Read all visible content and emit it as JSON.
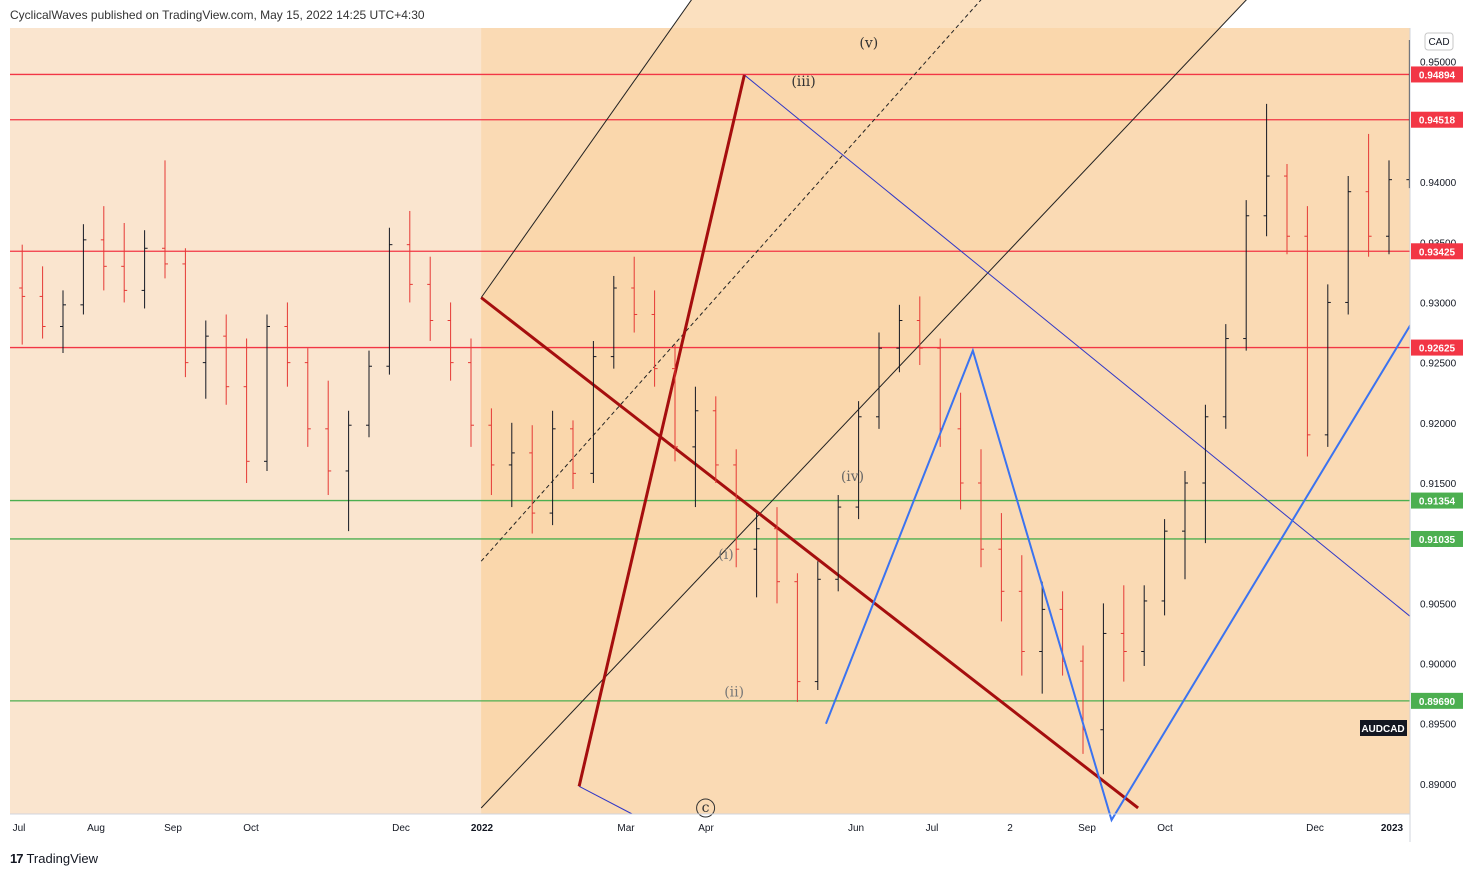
{
  "header": {
    "text": "CyclicalWaves published on TradingView.com, May 15, 2022 14:25 UTC+4:30"
  },
  "footer": {
    "logo_mark": "17",
    "logo_text": "TradingView"
  },
  "currency_label": "CAD",
  "symbol_tag": "AUDCAD",
  "colors": {
    "background": "#fae5cf",
    "channel_fill": "#f9d5aa",
    "red_line": "#f23645",
    "green_line": "#4caf50",
    "dark_red": "#a50e0e",
    "blue_thin": "#3037c7",
    "blue_projection": "#3b73f0",
    "candle_up": "#131722",
    "candle_down": "#e53935"
  },
  "chart_data": {
    "type": "bar",
    "symbol": "AUDCAD",
    "ylim": [
      0.8875,
      0.9528
    ],
    "x_tick_labels": [
      "Jul",
      "Aug",
      "Sep",
      "Oct",
      "Dec",
      "2022",
      "Mar",
      "Apr",
      "Jun",
      "Jul",
      "2",
      "Sep",
      "Oct",
      "Dec",
      "2023"
    ],
    "y_tick_labels": [
      "0.95000",
      "0.94500",
      "0.94000",
      "0.93500",
      "0.93000",
      "0.92500",
      "0.92000",
      "0.91500",
      "0.91000",
      "0.90500",
      "0.90000",
      "0.89500",
      "0.89000"
    ],
    "y_tick_values": [
      0.95,
      0.945,
      0.94,
      0.935,
      0.93,
      0.925,
      0.92,
      0.915,
      0.91,
      0.905,
      0.9,
      0.895,
      0.89
    ],
    "horizontal_levels": [
      {
        "value": 0.94894,
        "label": "0.94894",
        "color": "red"
      },
      {
        "value": 0.94518,
        "label": "0.94518",
        "color": "red"
      },
      {
        "value": 0.93425,
        "label": "0.93425",
        "color": "red"
      },
      {
        "value": 0.92625,
        "label": "0.92625",
        "color": "red"
      },
      {
        "value": 0.91354,
        "label": "0.91354",
        "color": "green"
      },
      {
        "value": 0.91035,
        "label": "0.91035",
        "color": "green"
      },
      {
        "value": 0.8969,
        "label": "0.89690",
        "color": "green"
      }
    ],
    "wave_labels": [
      {
        "text": "(v)",
        "week": 42.0,
        "price": 0.9515,
        "color": "#333333"
      },
      {
        "text": "(iii)",
        "week": 38.8,
        "price": 0.9483,
        "color": "#333333"
      },
      {
        "text": "(iv)",
        "week": 41.2,
        "price": 0.9155,
        "color": "#666666"
      },
      {
        "text": "(i)",
        "week": 35.0,
        "price": 0.909,
        "color": "#777777"
      },
      {
        "text": "(ii)",
        "week": 35.4,
        "price": 0.8976,
        "color": "#777777"
      },
      {
        "text": "c",
        "week": 34.0,
        "price": 0.888,
        "color": "#333333"
      }
    ],
    "bars": [
      {
        "o": 0.9312,
        "h": 0.9348,
        "l": 0.9265,
        "c": 0.9305
      },
      {
        "o": 0.9305,
        "h": 0.933,
        "l": 0.927,
        "c": 0.928
      },
      {
        "o": 0.928,
        "h": 0.931,
        "l": 0.9258,
        "c": 0.9298
      },
      {
        "o": 0.9298,
        "h": 0.9365,
        "l": 0.929,
        "c": 0.9352
      },
      {
        "o": 0.9352,
        "h": 0.938,
        "l": 0.931,
        "c": 0.933
      },
      {
        "o": 0.933,
        "h": 0.9366,
        "l": 0.93,
        "c": 0.931
      },
      {
        "o": 0.931,
        "h": 0.936,
        "l": 0.9295,
        "c": 0.9345
      },
      {
        "o": 0.9345,
        "h": 0.9418,
        "l": 0.932,
        "c": 0.9332
      },
      {
        "o": 0.9332,
        "h": 0.9345,
        "l": 0.9238,
        "c": 0.925
      },
      {
        "o": 0.925,
        "h": 0.9285,
        "l": 0.922,
        "c": 0.9272
      },
      {
        "o": 0.9272,
        "h": 0.929,
        "l": 0.9215,
        "c": 0.923
      },
      {
        "o": 0.923,
        "h": 0.927,
        "l": 0.915,
        "c": 0.9168
      },
      {
        "o": 0.9168,
        "h": 0.929,
        "l": 0.916,
        "c": 0.928
      },
      {
        "o": 0.928,
        "h": 0.93,
        "l": 0.923,
        "c": 0.925
      },
      {
        "o": 0.925,
        "h": 0.9262,
        "l": 0.918,
        "c": 0.9195
      },
      {
        "o": 0.9195,
        "h": 0.9235,
        "l": 0.914,
        "c": 0.916
      },
      {
        "o": 0.916,
        "h": 0.921,
        "l": 0.911,
        "c": 0.9198
      },
      {
        "o": 0.9198,
        "h": 0.926,
        "l": 0.9188,
        "c": 0.9247
      },
      {
        "o": 0.9247,
        "h": 0.9362,
        "l": 0.924,
        "c": 0.9348
      },
      {
        "o": 0.9348,
        "h": 0.9376,
        "l": 0.93,
        "c": 0.9315
      },
      {
        "o": 0.9315,
        "h": 0.9338,
        "l": 0.9268,
        "c": 0.9285
      },
      {
        "o": 0.9285,
        "h": 0.93,
        "l": 0.9235,
        "c": 0.925
      },
      {
        "o": 0.925,
        "h": 0.927,
        "l": 0.918,
        "c": 0.9198
      },
      {
        "o": 0.9198,
        "h": 0.9212,
        "l": 0.914,
        "c": 0.9165
      },
      {
        "o": 0.9165,
        "h": 0.92,
        "l": 0.913,
        "c": 0.9175
      },
      {
        "o": 0.9175,
        "h": 0.9198,
        "l": 0.9108,
        "c": 0.9125
      },
      {
        "o": 0.9125,
        "h": 0.921,
        "l": 0.9115,
        "c": 0.9195
      },
      {
        "o": 0.9195,
        "h": 0.9202,
        "l": 0.9145,
        "c": 0.9158
      },
      {
        "o": 0.9158,
        "h": 0.9268,
        "l": 0.915,
        "c": 0.9255
      },
      {
        "o": 0.9255,
        "h": 0.9322,
        "l": 0.9245,
        "c": 0.9312
      },
      {
        "o": 0.9312,
        "h": 0.9338,
        "l": 0.9275,
        "c": 0.929
      },
      {
        "o": 0.929,
        "h": 0.931,
        "l": 0.923,
        "c": 0.9245
      },
      {
        "o": 0.9245,
        "h": 0.9265,
        "l": 0.9168,
        "c": 0.918
      },
      {
        "o": 0.918,
        "h": 0.923,
        "l": 0.913,
        "c": 0.921
      },
      {
        "o": 0.921,
        "h": 0.9222,
        "l": 0.915,
        "c": 0.9165
      },
      {
        "o": 0.9165,
        "h": 0.9178,
        "l": 0.908,
        "c": 0.9095
      },
      {
        "o": 0.9095,
        "h": 0.9125,
        "l": 0.9055,
        "c": 0.9112
      },
      {
        "o": 0.9112,
        "h": 0.913,
        "l": 0.905,
        "c": 0.9068
      },
      {
        "o": 0.9068,
        "h": 0.9075,
        "l": 0.8968,
        "c": 0.8985
      },
      {
        "o": 0.8985,
        "h": 0.9085,
        "l": 0.8978,
        "c": 0.907
      },
      {
        "o": 0.907,
        "h": 0.914,
        "l": 0.906,
        "c": 0.913
      },
      {
        "o": 0.913,
        "h": 0.9218,
        "l": 0.912,
        "c": 0.9205
      },
      {
        "o": 0.9205,
        "h": 0.9275,
        "l": 0.9195,
        "c": 0.9262
      },
      {
        "o": 0.9262,
        "h": 0.9298,
        "l": 0.9242,
        "c": 0.9285
      },
      {
        "o": 0.9285,
        "h": 0.9305,
        "l": 0.9248,
        "c": 0.9262
      },
      {
        "o": 0.9262,
        "h": 0.927,
        "l": 0.918,
        "c": 0.9195
      },
      {
        "o": 0.9195,
        "h": 0.9225,
        "l": 0.9128,
        "c": 0.915
      },
      {
        "o": 0.915,
        "h": 0.9178,
        "l": 0.908,
        "c": 0.9095
      },
      {
        "o": 0.9095,
        "h": 0.9125,
        "l": 0.9035,
        "c": 0.906
      },
      {
        "o": 0.906,
        "h": 0.909,
        "l": 0.899,
        "c": 0.901
      },
      {
        "o": 0.901,
        "h": 0.9068,
        "l": 0.8975,
        "c": 0.9045
      },
      {
        "o": 0.9045,
        "h": 0.906,
        "l": 0.899,
        "c": 0.9002
      },
      {
        "o": 0.9002,
        "h": 0.9015,
        "l": 0.8925,
        "c": 0.8945
      },
      {
        "o": 0.8945,
        "h": 0.905,
        "l": 0.8908,
        "c": 0.9025
      },
      {
        "o": 0.9025,
        "h": 0.9065,
        "l": 0.8985,
        "c": 0.901
      },
      {
        "o": 0.901,
        "h": 0.9065,
        "l": 0.8998,
        "c": 0.9052
      },
      {
        "o": 0.9052,
        "h": 0.912,
        "l": 0.904,
        "c": 0.911
      },
      {
        "o": 0.911,
        "h": 0.916,
        "l": 0.907,
        "c": 0.915
      },
      {
        "o": 0.915,
        "h": 0.9215,
        "l": 0.91,
        "c": 0.9205
      },
      {
        "o": 0.9205,
        "h": 0.9282,
        "l": 0.9195,
        "c": 0.927
      },
      {
        "o": 0.927,
        "h": 0.9385,
        "l": 0.926,
        "c": 0.9372
      },
      {
        "o": 0.9372,
        "h": 0.9465,
        "l": 0.9355,
        "c": 0.9405
      },
      {
        "o": 0.9405,
        "h": 0.9415,
        "l": 0.934,
        "c": 0.9355
      },
      {
        "o": 0.9355,
        "h": 0.938,
        "l": 0.9172,
        "c": 0.919
      },
      {
        "o": 0.919,
        "h": 0.9315,
        "l": 0.918,
        "c": 0.93
      },
      {
        "o": 0.93,
        "h": 0.9405,
        "l": 0.929,
        "c": 0.9392
      },
      {
        "o": 0.9392,
        "h": 0.944,
        "l": 0.9338,
        "c": 0.9355
      },
      {
        "o": 0.9355,
        "h": 0.9418,
        "l": 0.934,
        "c": 0.9402
      },
      {
        "o": 0.9402,
        "h": 0.9518,
        "l": 0.9395,
        "c": 0.9415
      },
      {
        "o": 0.9415,
        "h": 0.9445,
        "l": 0.9372,
        "c": 0.9395
      },
      {
        "o": 0.9395,
        "h": 0.943,
        "l": 0.93,
        "c": 0.9315
      },
      {
        "o": 0.9315,
        "h": 0.935,
        "l": 0.925,
        "c": 0.9268
      },
      {
        "o": 0.9268,
        "h": 0.9288,
        "l": 0.9188,
        "c": 0.9205
      },
      {
        "o": 0.9205,
        "h": 0.9215,
        "l": 0.9118,
        "c": 0.9132
      },
      {
        "o": 0.9132,
        "h": 0.9255,
        "l": 0.906,
        "c": 0.9088
      },
      {
        "o": 0.9088,
        "h": 0.9118,
        "l": 0.902,
        "c": 0.9045
      },
      {
        "o": 0.9045,
        "h": 0.906,
        "l": 0.899,
        "c": 0.9002
      },
      {
        "o": 0.9002,
        "h": 0.9012,
        "l": 0.8925,
        "c": 0.8948
      }
    ],
    "drawings": {
      "channel": {
        "lower": [
          [
            23.0,
            0.888
          ],
          [
            63.0,
            0.9596
          ]
        ],
        "mid": [
          [
            23.0,
            0.9085
          ],
          [
            49.0,
            0.958
          ]
        ],
        "upper": [
          [
            23.0,
            0.9304
          ],
          [
            34.5,
            0.958
          ]
        ]
      },
      "dark_red_lines": [
        [
          [
            23.0,
            0.9304
          ],
          [
            55.2,
            0.888
          ]
        ],
        [
          [
            27.8,
            0.8898
          ],
          [
            35.9,
            0.9489
          ]
        ]
      ],
      "blue_thin_lines": [
        [
          [
            35.9,
            0.9489
          ],
          [
            70.0,
            0.9019
          ]
        ],
        [
          [
            27.8,
            0.8898
          ],
          [
            30.4,
            0.8875
          ]
        ]
      ],
      "blue_projection": [
        [
          39.9,
          0.895
        ],
        [
          47.1,
          0.926
        ],
        [
          53.9,
          0.887
        ],
        [
          70.0,
          0.9322
        ]
      ],
      "shaded_region_start_week": 23.0
    }
  }
}
